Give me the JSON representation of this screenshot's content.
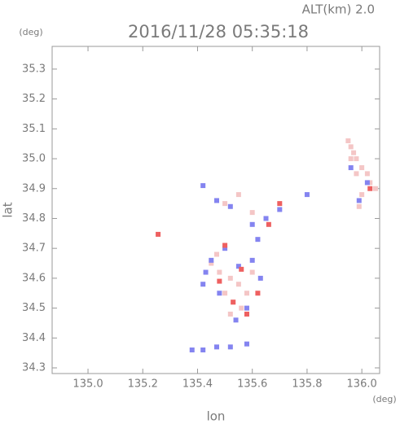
{
  "chart_data": {
    "type": "scatter",
    "title": "2016/11/28 05:35:18",
    "subtitle": "ALT(km) 2.0",
    "y_unit": "(deg)",
    "x_unit": "(deg)",
    "xlabel": "lon",
    "ylabel": "lat",
    "xlim": [
      134.869,
      136.065
    ],
    "ylim": [
      34.281,
      35.376
    ],
    "xticks": [
      {
        "value": 135.0,
        "label": "135.0"
      },
      {
        "value": 135.2,
        "label": "135.2"
      },
      {
        "value": 135.4,
        "label": "135.4"
      },
      {
        "value": 135.6,
        "label": "135.6"
      },
      {
        "value": 135.8,
        "label": "135.8"
      },
      {
        "value": 136.0,
        "label": "136.0"
      }
    ],
    "yticks": [
      34.3,
      34.4,
      34.5,
      34.6,
      34.7,
      34.8,
      34.9,
      {
        "value": 35.0,
        "label": "35.0"
      },
      35.1,
      35.2,
      35.3
    ],
    "series": [
      {
        "color": "#f4c6c6",
        "x": [
          135.95,
          135.96,
          135.97,
          135.98,
          136.0,
          136.02,
          136.03,
          136.05,
          135.98,
          136.0,
          135.99,
          135.96,
          135.45,
          135.48,
          135.52,
          135.55,
          135.5,
          135.53,
          135.56,
          135.58,
          135.6,
          135.47,
          135.52,
          135.5,
          135.6,
          135.55
        ],
        "values": [
          35.06,
          35.04,
          35.02,
          35.0,
          34.97,
          34.95,
          34.92,
          34.9,
          34.95,
          34.88,
          34.84,
          35.0,
          34.65,
          34.62,
          34.6,
          34.58,
          34.55,
          34.52,
          34.5,
          34.55,
          34.62,
          34.68,
          34.48,
          34.85,
          34.82,
          34.88
        ]
      },
      {
        "color": "#8484f0",
        "x": [
          135.42,
          135.47,
          135.52,
          135.6,
          135.65,
          135.7,
          135.8,
          135.45,
          135.43,
          135.5,
          135.55,
          135.6,
          135.63,
          135.58,
          135.54,
          135.48,
          135.38,
          135.42,
          135.47,
          135.52,
          135.58,
          135.96,
          135.99,
          136.02,
          135.62,
          135.42
        ],
        "values": [
          34.91,
          34.86,
          34.84,
          34.78,
          34.8,
          34.83,
          34.88,
          34.66,
          34.62,
          34.7,
          34.64,
          34.66,
          34.6,
          34.5,
          34.46,
          34.55,
          34.36,
          34.36,
          34.37,
          34.37,
          34.38,
          34.97,
          34.86,
          34.92,
          34.73,
          34.58
        ]
      },
      {
        "color": "#ee6060",
        "x": [
          135.256,
          135.5,
          135.56,
          135.62,
          135.58,
          135.48,
          135.66,
          135.7,
          136.03,
          135.53
        ],
        "values": [
          34.747,
          34.71,
          34.63,
          34.55,
          34.48,
          34.59,
          34.78,
          34.85,
          34.9,
          34.52
        ]
      }
    ]
  }
}
